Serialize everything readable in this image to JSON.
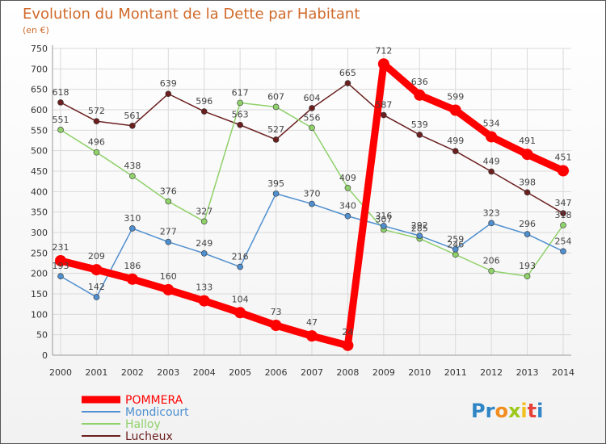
{
  "chart_data": {
    "type": "line",
    "title": "Evolution du Montant de la Dette par Habitant",
    "subtitle": "(en €)",
    "x": [
      "2000",
      "2001",
      "2002",
      "2003",
      "2004",
      "2005",
      "2006",
      "2007",
      "2008",
      "2009",
      "2010",
      "2011",
      "2012",
      "2013",
      "2014"
    ],
    "yticks": [
      0,
      50,
      100,
      150,
      200,
      250,
      300,
      350,
      400,
      450,
      500,
      550,
      600,
      650,
      700,
      750
    ],
    "ylim": [
      0,
      750
    ],
    "grid": true,
    "legend_position": "bottom-left",
    "series": [
      {
        "name": "POMMERA",
        "color": "#ff0000",
        "values": [
          231,
          209,
          186,
          160,
          133,
          104,
          73,
          47,
          24,
          712,
          636,
          599,
          534,
          491,
          451
        ]
      },
      {
        "name": "Mondicourt",
        "color": "#4f8fcf",
        "values": [
          193,
          142,
          310,
          277,
          249,
          216,
          395,
          370,
          340,
          316,
          292,
          259,
          323,
          296,
          254
        ]
      },
      {
        "name": "Halloy",
        "color": "#8fd16a",
        "values": [
          551,
          496,
          438,
          376,
          327,
          617,
          607,
          556,
          409,
          307,
          285,
          246,
          206,
          193,
          318
        ]
      },
      {
        "name": "Lucheux",
        "color": "#6b1f1f",
        "values": [
          618,
          572,
          561,
          639,
          596,
          563,
          527,
          604,
          665,
          587,
          539,
          499,
          449,
          398,
          347
        ]
      }
    ]
  },
  "brand": {
    "letters": [
      "P",
      "r",
      "o",
      "x",
      "i",
      "t",
      "i"
    ],
    "colors": [
      "#2f86c6",
      "#2f86c6",
      "#f28c1c",
      "#9dc91f",
      "#f2c01c",
      "#e8413a",
      "#2f86c6"
    ]
  }
}
